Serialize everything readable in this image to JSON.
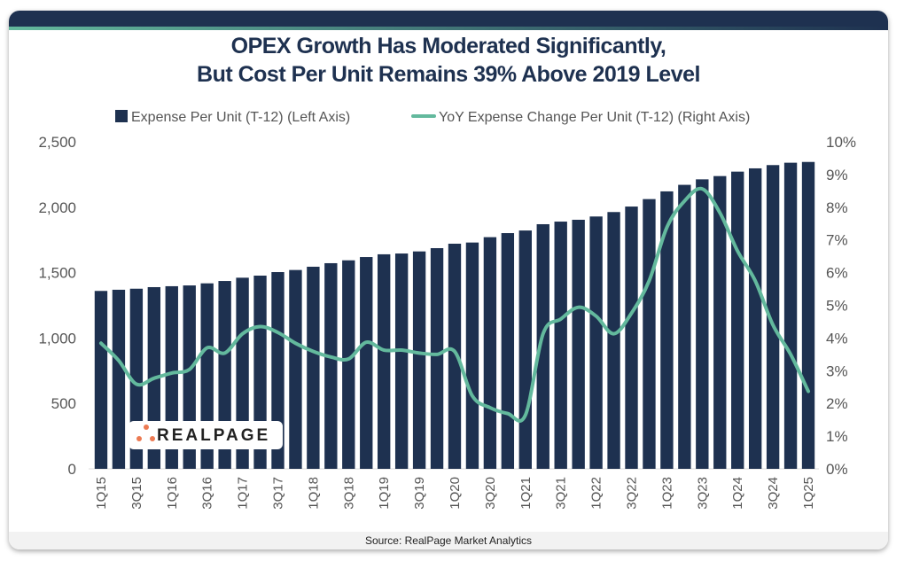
{
  "title_line1": "OPEX Growth Has Moderated Significantly,",
  "title_line2": "But Cost Per Unit Remains 39% Above 2019 Level",
  "source": "Source: RealPage Market Analytics",
  "logo_text": "REALPAGE",
  "colors": {
    "bars": "#1e3150",
    "line": "#63b99d",
    "accent_dot": "#ec7a52"
  },
  "chart_data": {
    "type": "bar+line",
    "legend_position": "top",
    "grid": false,
    "categories": [
      "1Q15",
      "2Q15",
      "3Q15",
      "4Q15",
      "1Q16",
      "2Q16",
      "3Q16",
      "4Q16",
      "1Q17",
      "2Q17",
      "3Q17",
      "4Q17",
      "1Q18",
      "2Q18",
      "3Q18",
      "4Q18",
      "1Q19",
      "2Q19",
      "3Q19",
      "4Q19",
      "1Q20",
      "2Q20",
      "3Q20",
      "4Q20",
      "1Q21",
      "2Q21",
      "3Q21",
      "4Q21",
      "1Q22",
      "2Q22",
      "3Q22",
      "4Q22",
      "1Q23",
      "2Q23",
      "3Q23",
      "4Q23",
      "1Q24",
      "2Q24",
      "3Q24",
      "4Q24",
      "1Q25"
    ],
    "x_tick_labels": [
      "1Q15",
      "3Q15",
      "1Q16",
      "3Q16",
      "1Q17",
      "3Q17",
      "1Q18",
      "3Q18",
      "1Q19",
      "3Q19",
      "1Q20",
      "3Q20",
      "1Q21",
      "3Q21",
      "1Q22",
      "3Q22",
      "1Q23",
      "3Q23",
      "1Q24",
      "3Q24",
      "1Q25"
    ],
    "left_axis": {
      "range": [
        0,
        2500
      ],
      "ticks": [
        "0",
        "500",
        "1,000",
        "1,500",
        "2,000",
        "2,500"
      ]
    },
    "right_axis": {
      "range": [
        0,
        10
      ],
      "ticks": [
        "0%",
        "1%",
        "2%",
        "3%",
        "4%",
        "5%",
        "6%",
        "7%",
        "8%",
        "9%",
        "10%"
      ]
    },
    "series": [
      {
        "name": "Expense Per Unit (T-12) (Left Axis)",
        "type": "bar",
        "axis": "left",
        "values": [
          1360,
          1369,
          1377,
          1389,
          1396,
          1402,
          1418,
          1436,
          1461,
          1477,
          1504,
          1520,
          1545,
          1572,
          1594,
          1619,
          1640,
          1646,
          1662,
          1687,
          1721,
          1730,
          1771,
          1802,
          1822,
          1870,
          1890,
          1904,
          1929,
          1963,
          2005,
          2062,
          2121,
          2171,
          2213,
          2238,
          2272,
          2297,
          2322,
          2340,
          2346
        ]
      },
      {
        "name": "YoY Expense Change Per Unit (T-12) (Right Axis)",
        "type": "line",
        "axis": "right",
        "values": [
          3.84,
          3.31,
          2.59,
          2.77,
          2.93,
          3.04,
          3.7,
          3.54,
          4.13,
          4.35,
          4.17,
          3.84,
          3.59,
          3.42,
          3.36,
          3.87,
          3.63,
          3.63,
          3.54,
          3.5,
          3.59,
          2.23,
          1.87,
          1.69,
          1.64,
          4.13,
          4.58,
          4.94,
          4.67,
          4.13,
          4.76,
          5.75,
          7.38,
          8.19,
          8.56,
          7.83,
          6.66,
          5.75,
          4.4,
          3.5,
          2.37
        ]
      }
    ]
  }
}
